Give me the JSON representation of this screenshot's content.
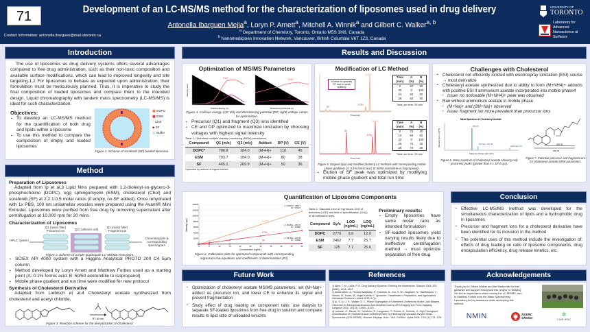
{
  "header": {
    "poster_number": "71",
    "title": "Development of an LC-MS/MS method for the characterization of liposomes used in drug delivery",
    "authors": [
      {
        "name": "Antonella Ibarguen Mejia",
        "sup": "a"
      },
      {
        "name": "Loryn P. Arnett",
        "sup": "a"
      },
      {
        "name": "Mitchell A. Winnik",
        "sup": "a"
      },
      {
        "name": "Gilbert C. Walker",
        "sup": "a, b"
      }
    ],
    "author_sep": ", ",
    "author_and": " and ",
    "affiliations": [
      {
        "sup": "a",
        "text": "Department of Chemistry, Toronto, Ontario M5S 3H6, Canada"
      },
      {
        "sup": "b",
        "text": "Nanomedicines Innovation Network, Vancouver, British Columbia V6T 1Z3, Canada"
      }
    ],
    "contact": "Contact Information: antonella.ibarguen@mail.utoronto.ca",
    "uoft_small": "UNIVERSITY OF",
    "uoft_big": "TORONTO",
    "lab": "Laboratory for Advanced Nanoscience at Surfaces"
  },
  "intro": {
    "title": "Introduction",
    "text": "The use of liposomes as drug delivery systems offers several advantages compared to free drug administration, such as their non-toxic composition and available surface modifications, which can lead to improved longevity and site targeting.1,2 For liposomes to behave as expected upon administration, their formulation must be meticulously planned. Thus, it is imperative to study the final composition of loaded liposomes and compare them to the intended design. Liquid chromatography with tandem mass spectrometry (LC-MS/MS) is ideal for such characterization.",
    "objectives_title": "Objectives:",
    "objectives": [
      "To develop an LC-MS/MS method for the quantification of both drug and lipids within a liposome",
      "To use this method to compare the composition of empty and loaded liposomes"
    ],
    "legend": [
      "DOPC",
      "ESM",
      "Chol",
      "SF",
      "Buffer"
    ],
    "fig1_caption": "Figure 1. Scheme of sorafenib (SF)-loaded liposome."
  },
  "method": {
    "title": "Method",
    "prep_title": "Preparation of Liposomes",
    "prep_text": "Adapted from Ip et al.3 Lipid films prepared with 1,2-dioleoyl-sn-glycero-3-phosphocholine (DOPC), egg sphingomyelin (ESM), cholesterol (Chol) and sorafenib (SF) at 2:2:1:0.5 molar ratios (if empty, no SF added). Once rehydrated with 1x PBS, 100 nm unilamellar vesicles were prepared using the Avanti® Mini Extruder. Liposomes were purified from free drug by removing supernatant after centrifugation at 10,000 rpm for 20 mins.",
    "char_title": "Characterization of Liposomes",
    "diagram": {
      "q1a": "Q1 (mass filter)",
      "q1a2": "Precursor ion",
      "q2": "Q2 (collision cell)",
      "q3": "Q1 (mass filter)",
      "q32": "Fragment ion",
      "hplc": "HPLC system",
      "out": "Chromatogram & corresponding spectrogram"
    },
    "fig2_caption": "Figure 2. Scheme of a triple-quadrupole LC-MS/MS instrument.",
    "bullets": [
      "SCIEX API 4000 system with a Higgins Analytical PROTO 200 C4 5μm column",
      "Method developed by Loryn Arnett and Matthew Forbes used as a starting point (A: 0.1% formic acid, B: 50/50 acetonitrile to isopropanol)",
      "Mobile phase gradient and run time were modified for new protocol"
    ],
    "synth_title": "Synthesis of Cholesterol Derivative",
    "synth_text": "Adapted from Liebisch et al.4 Cholesteryl acetate synthesized from cholesterol and acetyl chloride.",
    "conditions": "RT, 60 min",
    "fig3_caption": "Figure 3. Reaction scheme for the derivatization of cholesterol."
  },
  "results": {
    "title": "Results and Discussion",
    "msms": {
      "title": "Optimization of MS/MS Parameters",
      "xlabel_left": "Collision Energy (V)",
      "xlabel_right": "Declustering Potential (V)",
      "ylabel": "Intensity (cps)",
      "labels": [
        "ESM",
        "SF"
      ],
      "fig4_caption": "Figure 4. Collision energy (CE; left) and declustering potential (DP; right) voltage ramps for optimization.",
      "bullets": [
        "Precursor (Q1) and fragment (Q3) ions identified",
        "CE and DP optimized to maximize ionization by choosing voltages with highest signal intensity"
      ],
      "table_caption": "Table 1. Optimized multiple reaction monitoring (MRM) parameters.",
      "table": {
        "headers": [
          "Compound",
          "Q1 (m/z)",
          "Q3 (m/z)",
          "Adduct",
          "DP (V)",
          "CE (V)"
        ],
        "rows": [
          [
            "DOPC*",
            "786.8",
            "184.0",
            "(M+H)+",
            "110",
            "45"
          ],
          [
            "ESM",
            "703.7",
            "184.0",
            "(M+H)+",
            "80",
            "38"
          ],
          [
            "SF",
            "465.2",
            "269.9",
            "(M+H)+",
            "50",
            "36"
          ]
        ]
      },
      "footnote": "*optimized by authors of original method"
    },
    "lc": {
      "title": "Modification of LC Method",
      "callout": "Unable to quantify SF due to peak splitting",
      "peaks": [
        "DOPC",
        "ESM",
        "SF"
      ],
      "xlabel": "Time (min)",
      "ylabel": "Intensity (cps)",
      "headers": [
        "Time (min)",
        "A (%)",
        "B (%)"
      ],
      "top_rows": [
        [
          "0",
          "50",
          "50"
        ],
        [
          "20",
          "0",
          "100"
        ],
        [
          "24",
          "50",
          "50"
        ],
        [
          "26",
          "50",
          "50"
        ]
      ],
      "top_total": "Total run time: 26 min",
      "bottom_rows": [
        [
          "0",
          "70",
          "30"
        ],
        [
          "10",
          "50",
          "50"
        ],
        [
          "20",
          "0",
          "100"
        ],
        [
          "26",
          "70",
          "30"
        ],
        [
          "28",
          "70",
          "30"
        ]
      ],
      "bottom_total": "Total run time: 28 min",
      "fig5_caption": "Figure 5. Original (top) and modified (bottom) LC methods with corresponding mobile phase gradients (A: 0.1% formic acid, B: 50/50 acetonitrile to isopropanol).",
      "bullet": "Elution of SF peak was optimized by modifying mobile phase gradient and total run time"
    },
    "chol": {
      "title": "Challenges with Cholesterol",
      "b1": "Cholesterol not efficiently ionized with electrospray ionization (ESI) source → must derivatize",
      "b2": "Cholesteryl acetate synthesized due to ability to form (M+NH4)+ adducts with positive ESI if ammonium acetate incorporated into mobile phase4",
      "b2s": "Issue: no noticeable (M+NH4)+ peak was observed",
      "b3": "Ran without ammonium acetate in mobile phase",
      "b3s": [
        "(M+Na)+ and (2M+Na)+ observed",
        "Issue: fragment ion more prevalent than precursor ions"
      ],
      "ms_title": "Mass Spectrum of Cholesteryl Acetate",
      "ms_xlabel": "Mass-to-charge ratio (m/z)",
      "ms_ylabel": "Intensity (cps x 10^5)",
      "ms_peaks": [
        {
          "label": "369.35",
          "mz": 369.35,
          "rel": 1.0
        },
        {
          "label": "(M+Na)+ 451.36",
          "mz": 451.36,
          "rel": 0.18
        },
        {
          "label": "(2M+Na)+ 879.72",
          "mz": 879.72,
          "rel": 0.1
        }
      ],
      "fig6_caption": "Figure 6. Mass spectrum of cholesteryl acetate showing only prominent peaks (greater than 5 x 10^4 cps).",
      "frag_labels": [
        "369.35",
        "369.35"
      ],
      "fig7_caption": "Figure 7. Potential precursor and fragment ions for cholesteryl acetate MRM parameters."
    },
    "quant": {
      "title": "Quantification of Liposome Components",
      "fig8_caption": "Figure 8. Calibration plots for optimized compounds with corresponding regression line equations and coefficients of determination (R²).",
      "table_caption": "Table 2. Standard error of regression, limit of detection (LOD) and limit of quantification (LOQ) of all calibration lines.",
      "table": {
        "headers": [
          "Compound",
          "Sy/x",
          "LOD (ng/mL)",
          "LOQ (ng/mL)"
        ],
        "rows": [
          [
            "DOPC",
            "2776",
            "3.6",
            "12.0"
          ],
          [
            "ESM",
            "2462",
            "7.7",
            "25.7"
          ],
          [
            "SF",
            "125",
            "7.7",
            "25.6"
          ]
        ]
      },
      "prelim_title": "Preliminary results:",
      "prelim": [
        "Empty liposomes have same molar ratio as intended formulation",
        "SF-loaded liposomes yield varying results likely due to ineffective centrifugation method → must optimize separation of free drug"
      ]
    }
  },
  "chart_data": {
    "type": "line",
    "title": "Calibration plots",
    "xlabel": "Concentration (ng/mL)",
    "ylabel": "Intensity (cps)",
    "xlim": [
      0,
      50
    ],
    "ylim": [
      0,
      140000
    ],
    "xticks": [
      "0",
      "5",
      "10",
      "15",
      "20",
      "25",
      "30",
      "35",
      "40",
      "45",
      "50"
    ],
    "yticks": [
      "0",
      "20000",
      "40000",
      "60000",
      "80000",
      "100000",
      "120000",
      "140000"
    ],
    "x": [
      0,
      5,
      15,
      30,
      50
    ],
    "series": [
      {
        "name": "DOPC",
        "color": "#f0a27a",
        "values": [
          0,
          11100,
          34400,
          69200,
          115700
        ],
        "equation": "y = 2323.5x - 496.17",
        "r2": "R² = 0.9974"
      },
      {
        "name": "ESM",
        "color": "#e0454f",
        "values": [
          250,
          5000,
          14600,
          28900,
          48000
        ],
        "equation": "y = 954.66x + 256.79",
        "r2": "R² = 0.9982"
      },
      {
        "name": "SF",
        "color": "#a0287a",
        "values": [
          130,
          370,
          860,
          1590,
          2560
        ],
        "equation": "y = 48.739x + 126.45",
        "r2": "R² = 0.9982"
      }
    ]
  },
  "conclusion": {
    "title": "Conclusion",
    "bullets": [
      "Effective LC-MS/MS method was developed for the simultaneous characterization of lipids and a hydrophobic drug in liposomes",
      "Precursor and fragment ions for a cholesterol derivative have been identified for its inclusion in the method",
      "The potential uses of this method include the investigation of: effects of drug loading on ratio of liposome components, drug encapsulation efficiency, drug release kinetics, etc."
    ]
  },
  "future": {
    "title": "Future Work",
    "bullets": [
      "Optimization of cholesteryl acetate MS/MS parameters: set (M+Na)+ adduct as precursor ion, and lower CE to enhance its signal and prevent fragmentation",
      "Study effect of drug loading on component ratio: use dialysis to separate SF-loaded liposomes from free drug in solution and compare results to lipid ratio of unloaded vesicles"
    ]
  },
  "references": {
    "title": "References",
    "items": [
      "1) Allen, T. M.; Cullis, P. R. Drug Delivery Systems: Entering the Mainstream. Science 2004, 303 (5665), 1818–1822.",
      "2) Akbarzadeh, A.; Rezaei-Sadabady, R.; Davaran, S.; Joo, S. W.; Zarghami, N.; Hanifehpour, Y.; Samiei, M.; Kouhi, M.; Nejati-Koshki, K. Liposome: Classification, Preparation, and Applications. Nanoscale Research Letters 2013, 8 (1).",
      "3) Ip, S.; Li, J. K.; Walker, G. C. Phase Segregation of Untethered Zwitterionic Model Lipid Bilayers Observed on Mercaptoundecanoic-Acid-Modified Gold by AFM Imaging and Force Mapping. Langmuir 2010, 26 (13), 11060–11070.",
      "4) Liebisch, G.; Binder, M.; Schifferer, R.; Langmann, T.; Schulz, B.; Schmitz, G. High Throughput Quantification of Cholesterol and Cholesteryl Ester by Electrospray Ionization Tandem Mass Spectrometry (ESI-MS/MS). Biochim. Biophys. Acta – Mol. Cell Biol. Lipids 2006, 1761 (1), 121–128."
    ]
  },
  "ack": {
    "title": "Acknowledgements",
    "text": "Thank you to Gilbert Walker and the Walker lab for their guidance and support throughout this project, to Weiqing Shi for her supervision when running the LC-MS/MS, and to Matthew Forbes from the Mass Spectrometry Laboratory for his assistance while developing this method.",
    "logos": {
      "nmin": "NMIN",
      "nserc": "NSERC",
      "crsng": "CRSNG",
      "cihr": "CIHR IRSC"
    }
  },
  "colors": {
    "navy": "#0e2b5e",
    "bg": "#e4e6f6",
    "dopc": "#f0a27a",
    "esm": "#e0454f",
    "sf": "#a0287a"
  }
}
